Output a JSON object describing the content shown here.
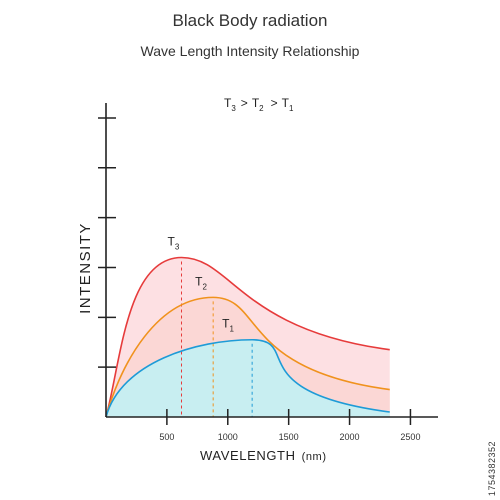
{
  "header": {
    "title": "Black Body radiation",
    "subtitle": "Wave Length Intensity Relationship"
  },
  "relation": {
    "t3_main": "T",
    "t3_sub": "3",
    "gt1": ">",
    "t2_main": "T",
    "t2_sub": "2",
    "gt2": ">",
    "t1_main": "T",
    "t1_sub": "1"
  },
  "colors": {
    "t3_line": "#e63b3b",
    "t3_fill": "#fde0e3",
    "t2_line": "#f0921d",
    "t2_fill": "#fbd7d5",
    "t1_line": "#1e9bd7",
    "t1_fill": "#c8eef1",
    "axis": "#222222"
  },
  "watermark": {
    "stock_id": "1754382352"
  },
  "chart_data": {
    "type": "line",
    "title": "Black Body radiation",
    "subtitle": "Wave Length Intensity Relationship",
    "xlabel": "WAVELENGTH",
    "xunit": "(nm)",
    "ylabel": "INTENSITY",
    "xlim": [
      0,
      2500
    ],
    "ylim": [
      0,
      6.3
    ],
    "x_ticks": [
      500,
      1000,
      1500,
      2000,
      2500
    ],
    "x_tick_labels": [
      "500",
      "1000",
      "1500",
      "2000",
      "2500"
    ],
    "y_ticks": [
      1,
      2,
      3,
      4,
      5,
      6
    ],
    "grid": false,
    "series": [
      {
        "name": "T3",
        "label_main": "T",
        "label_sub": "3",
        "peak_wavelength": 620,
        "points": [
          [
            0,
            0
          ],
          [
            620,
            3.2
          ],
          [
            2330,
            1.35
          ]
        ]
      },
      {
        "name": "T2",
        "label_main": "T",
        "label_sub": "2",
        "peak_wavelength": 880,
        "points": [
          [
            0,
            0
          ],
          [
            880,
            2.4
          ],
          [
            2330,
            0.55
          ]
        ]
      },
      {
        "name": "T1",
        "label_main": "T",
        "label_sub": "1",
        "peak_wavelength": 1200,
        "points": [
          [
            0,
            0
          ],
          [
            1200,
            1.55
          ],
          [
            2330,
            0.1
          ]
        ]
      }
    ]
  }
}
